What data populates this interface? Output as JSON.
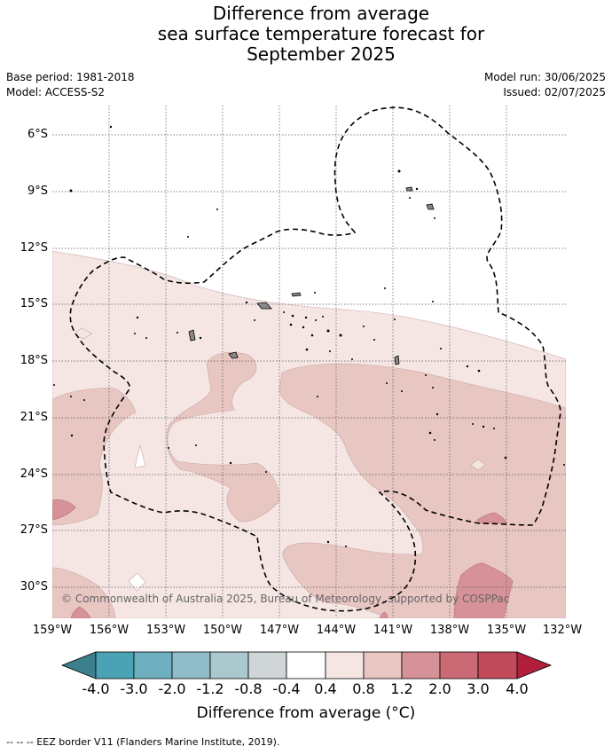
{
  "title_lines": [
    "Difference from average",
    "sea surface temperature forecast for",
    "September 2025"
  ],
  "meta": {
    "base_period": "Base period: 1981-2018",
    "model": "Model: ACCESS-S2",
    "model_run": "Model run: 30/06/2025",
    "issued": "Issued: 02/07/2025"
  },
  "copyright": "© Commonwealth of Australia 2025, Bureau of Meteorology, supported by COSPPac",
  "map": {
    "lon_ticks": [
      "159°W",
      "156°W",
      "153°W",
      "150°W",
      "147°W",
      "144°W",
      "141°W",
      "138°W",
      "135°W",
      "132°W"
    ],
    "lat_ticks": [
      "6°S",
      "9°S",
      "12°S",
      "15°S",
      "18°S",
      "21°S",
      "24°S",
      "27°S",
      "30°S"
    ],
    "grid": true
  },
  "colorbar": {
    "title": "Difference from average (°C)",
    "labels": [
      "-4.0",
      "-3.0",
      "-2.0",
      "-1.2",
      "-0.8",
      "-0.4",
      "0.4",
      "0.8",
      "1.2",
      "2.0",
      "3.0",
      "4.0"
    ],
    "colors": [
      "#3d7f8c",
      "#4aa3b5",
      "#6eb0c0",
      "#8fbcc8",
      "#aac8cd",
      "#d0d6d8",
      "#ffffff",
      "#f5e6e4",
      "#e8c6c2",
      "#d69298",
      "#cb6a75",
      "#c24b5b",
      "#b11f3d"
    ]
  },
  "footer": "--  --  -- EEZ border V11 (Flanders Marine Institute, 2019)."
}
